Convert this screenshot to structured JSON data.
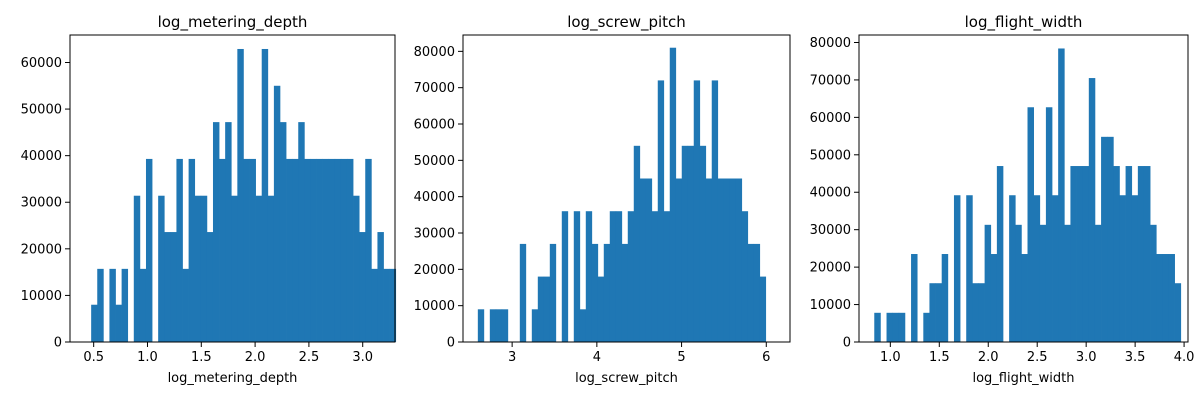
{
  "figure": {
    "bar_color": "#1f77b4",
    "background": "#ffffff"
  },
  "chart_data": [
    {
      "type": "bar",
      "title": "log_metering_depth",
      "xlabel": "log_metering_depth",
      "ylabel": "",
      "xlim": [
        0.28,
        3.3
      ],
      "ylim": [
        0,
        65900
      ],
      "grid": false,
      "xticks": [
        0.5,
        1.0,
        1.5,
        2.0,
        2.5,
        3.0
      ],
      "xtick_labels": [
        "0.5",
        "1.0",
        "1.5",
        "2.0",
        "2.5",
        "3.0"
      ],
      "yticks": [
        0,
        10000,
        20000,
        30000,
        40000,
        50000,
        60000
      ],
      "ytick_labels": [
        "0",
        "10000",
        "20000",
        "30000",
        "40000",
        "50000",
        "60000"
      ],
      "bin_start": 0.42,
      "bin_width": 0.0566,
      "values": [
        0,
        8000,
        15700,
        0,
        15700,
        8000,
        15700,
        0,
        31400,
        15700,
        39300,
        0,
        31400,
        23600,
        23600,
        39300,
        15700,
        39300,
        31400,
        31400,
        23600,
        47200,
        39300,
        47200,
        31400,
        62900,
        39300,
        39300,
        31400,
        62900,
        31400,
        55000,
        47200,
        39300,
        39300,
        47200,
        39300,
        39300,
        39300,
        39300,
        39300,
        39300,
        39300,
        39300,
        31400,
        23600,
        39300,
        15700,
        23600,
        15700,
        15700
      ]
    },
    {
      "type": "bar",
      "title": "log_screw_pitch",
      "xlabel": "log_screw_pitch",
      "ylabel": "",
      "xlim": [
        2.42,
        6.28
      ],
      "ylim": [
        0,
        84500
      ],
      "grid": false,
      "xticks": [
        3,
        4,
        5,
        6
      ],
      "xtick_labels": [
        "3",
        "4",
        "5",
        "6"
      ],
      "yticks": [
        0,
        10000,
        20000,
        30000,
        40000,
        50000,
        60000,
        70000,
        80000
      ],
      "ytick_labels": [
        "0",
        "10000",
        "20000",
        "30000",
        "40000",
        "50000",
        "60000",
        "70000",
        "80000"
      ],
      "bin_start": 2.595,
      "bin_width": 0.0708,
      "values": [
        9000,
        0,
        9000,
        9000,
        9000,
        0,
        0,
        27000,
        0,
        9000,
        18000,
        18000,
        27000,
        0,
        36000,
        0,
        36000,
        9000,
        36000,
        27000,
        18000,
        27000,
        36000,
        36000,
        27000,
        36000,
        54000,
        45000,
        45000,
        36000,
        72000,
        36000,
        81000,
        45000,
        54000,
        54000,
        72000,
        54000,
        45000,
        72000,
        45000,
        45000,
        45000,
        45000,
        36000,
        27000,
        27000,
        18000
      ]
    },
    {
      "type": "bar",
      "title": "log_flight_width",
      "xlabel": "log_flight_width",
      "ylabel": "",
      "xlim": [
        0.68,
        4.04
      ],
      "ylim": [
        0,
        82000
      ],
      "grid": false,
      "xticks": [
        1.0,
        1.5,
        2.0,
        2.5,
        3.0,
        3.5,
        4.0
      ],
      "xtick_labels": [
        "1.0",
        "1.5",
        "2.0",
        "2.5",
        "3.0",
        "3.5",
        "4.0"
      ],
      "yticks": [
        0,
        10000,
        20000,
        30000,
        40000,
        50000,
        60000,
        70000,
        80000
      ],
      "ytick_labels": [
        "0",
        "10000",
        "20000",
        "30000",
        "40000",
        "50000",
        "60000",
        "70000",
        "80000"
      ],
      "bin_start": 0.836,
      "bin_width": 0.0626,
      "values": [
        7800,
        0,
        7800,
        7800,
        7800,
        0,
        23500,
        0,
        7800,
        15700,
        15700,
        23500,
        0,
        39200,
        0,
        39200,
        15700,
        15700,
        31300,
        23500,
        47000,
        0,
        39200,
        31300,
        23500,
        62700,
        39200,
        31300,
        62700,
        39200,
        78400,
        31300,
        47000,
        47000,
        47000,
        70500,
        31300,
        54800,
        54800,
        47000,
        39200,
        47000,
        39200,
        47000,
        47000,
        31300,
        23500,
        23500,
        23500,
        15700
      ]
    }
  ]
}
